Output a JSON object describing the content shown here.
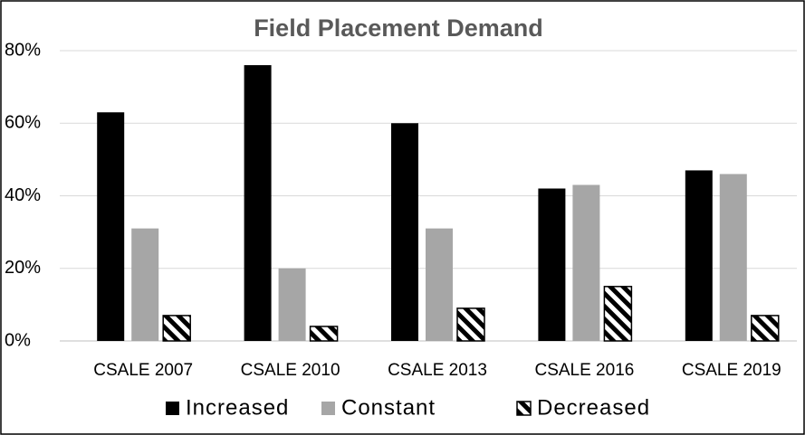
{
  "chart_data": {
    "type": "bar",
    "title": "Field Placement Demand",
    "categories": [
      "CSALE 2007",
      "CSALE 2010",
      "CSALE 2013",
      "CSALE 2016",
      "CSALE 2019"
    ],
    "series": [
      {
        "name": "Increased",
        "color": "#000000",
        "values": [
          63,
          76,
          60,
          42,
          47
        ]
      },
      {
        "name": "Constant",
        "color": "#a6a6a6",
        "values": [
          31,
          20,
          31,
          43,
          46
        ]
      },
      {
        "name": "Decreased",
        "color": "#000000",
        "values": [
          7,
          4,
          9,
          15,
          7
        ]
      }
    ],
    "ylim": [
      0,
      80
    ],
    "yticks": [
      {
        "value": 0,
        "label": "0%"
      },
      {
        "value": 20,
        "label": "20%"
      },
      {
        "value": 40,
        "label": "40%"
      },
      {
        "value": 60,
        "label": "60%"
      },
      {
        "value": 80,
        "label": "80%"
      }
    ],
    "grid": true
  }
}
